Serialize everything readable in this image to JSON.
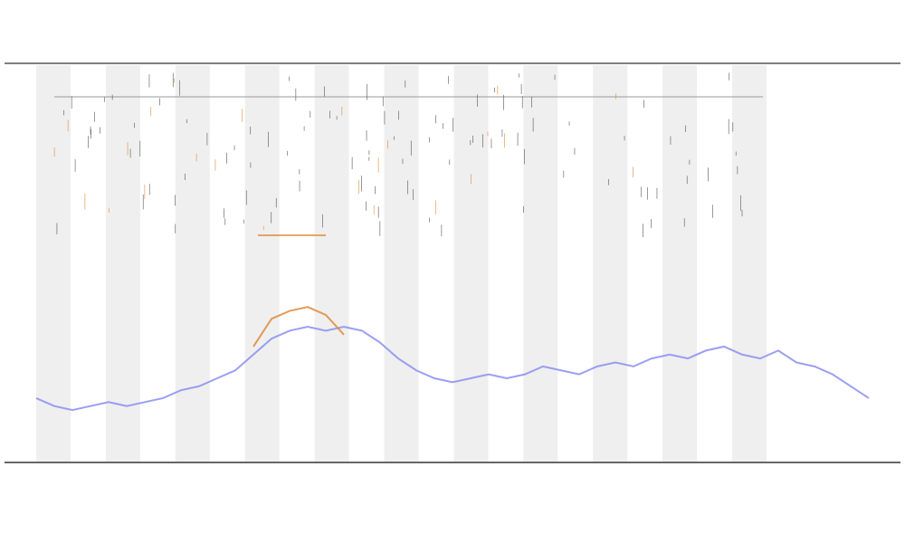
{
  "chart_data": {
    "type": "line",
    "x": [
      0,
      1,
      2,
      3,
      4,
      5,
      6,
      7,
      8,
      9,
      10,
      11,
      12,
      13,
      14,
      15,
      16,
      17,
      18,
      19,
      20,
      21,
      22,
      23,
      24,
      25,
      26,
      27,
      28,
      29,
      30,
      31,
      32,
      33,
      34,
      35,
      36,
      37,
      38,
      39,
      40,
      41,
      42,
      43,
      44,
      45,
      46
    ],
    "xlim": [
      0,
      46
    ],
    "ylim": [
      0,
      100
    ],
    "series": [
      {
        "color": "#8a8ef0",
        "values": [
          16,
          14,
          13,
          14,
          15,
          14,
          15,
          16,
          18,
          19,
          21,
          23,
          27,
          31,
          33,
          34,
          33,
          34,
          33,
          30,
          26,
          23,
          21,
          20,
          21,
          22,
          21,
          22,
          24,
          23,
          22,
          24,
          25,
          24,
          26,
          27,
          26,
          28,
          29,
          27,
          26,
          28,
          25,
          24,
          22,
          19,
          16
        ]
      },
      {
        "color": "#e08a3a",
        "values": [
          null,
          null,
          null,
          null,
          null,
          null,
          null,
          null,
          null,
          null,
          null,
          null,
          29,
          36,
          38,
          39,
          37,
          32,
          null,
          null,
          null,
          null,
          null,
          null,
          null,
          null,
          null,
          null,
          null,
          null,
          null,
          null,
          null,
          null,
          null,
          null,
          null,
          null,
          null,
          null,
          null,
          null,
          null,
          null,
          null,
          null,
          null
        ]
      }
    ]
  }
}
